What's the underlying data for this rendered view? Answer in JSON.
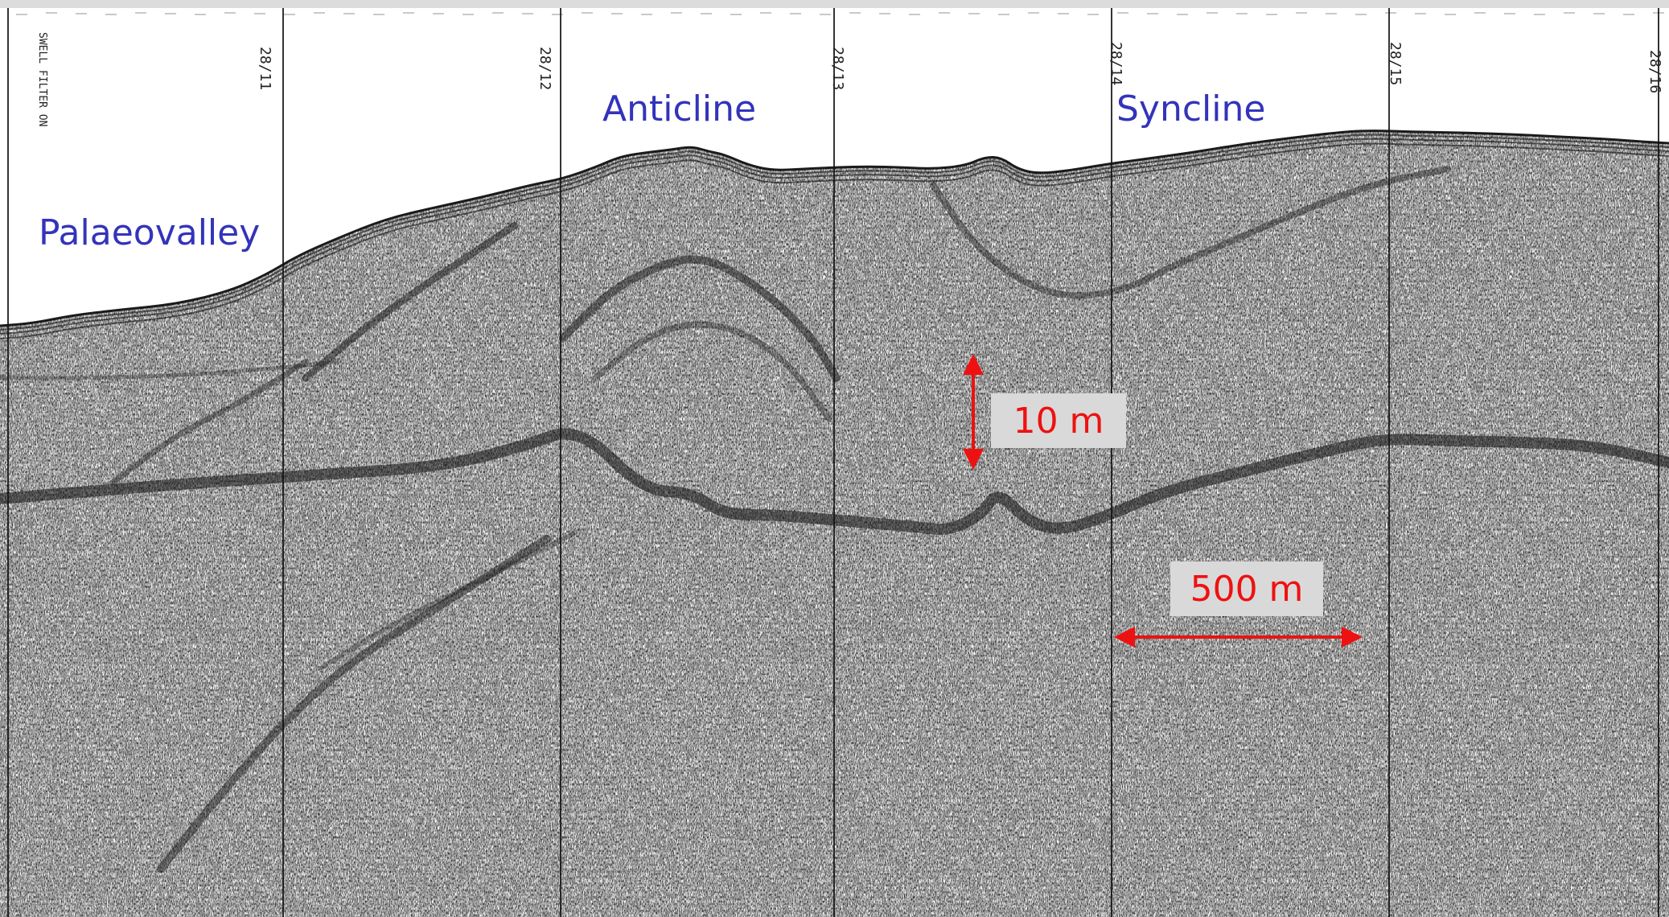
{
  "labels": {
    "palaeovalley": "Palaeovalley",
    "anticline": "Anticline",
    "syncline": "Syncline"
  },
  "scale": {
    "vertical": "10 m",
    "horizontal": "500 m"
  },
  "fix_marks": [
    "28/11",
    "28/12",
    "28/13",
    "28/14",
    "28/15",
    "28/16"
  ],
  "record_note": "SWELL FILTER ON",
  "colors": {
    "label": "#3333bb",
    "scale_text": "#ee1111",
    "arrow": "#ee1111",
    "scale_box": "#d9d9d9",
    "record_ink": "#111111",
    "paper": "#ffffff"
  }
}
